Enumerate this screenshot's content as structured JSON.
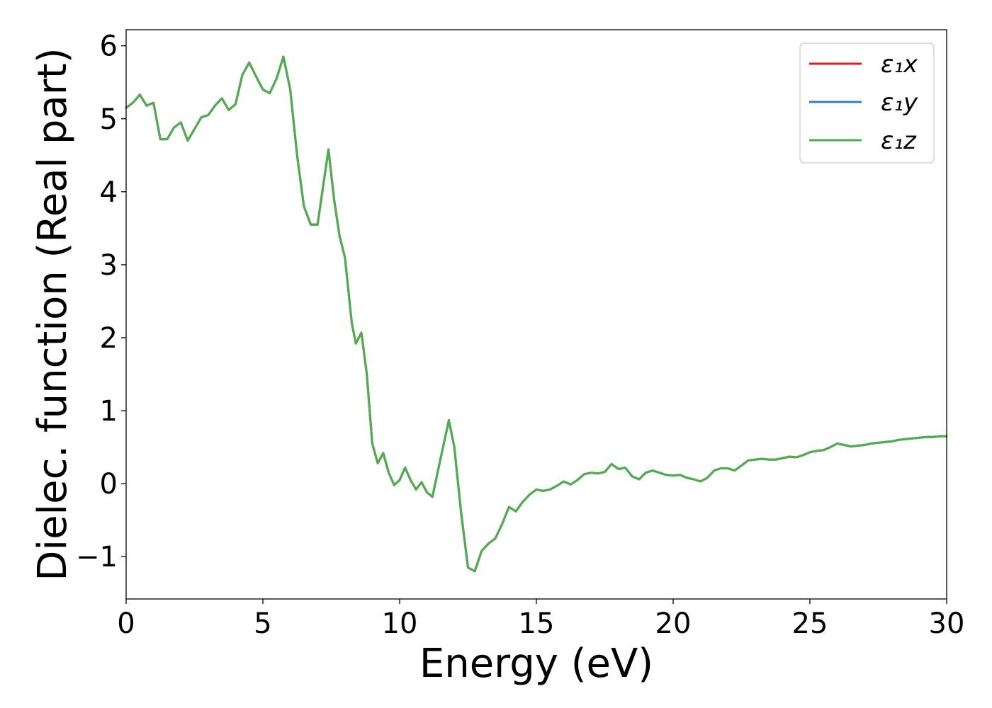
{
  "chart_data": {
    "type": "line",
    "xlabel": "Energy (eV)",
    "ylabel": "Dielec. function (Real part)",
    "xlim": [
      0,
      30
    ],
    "ylim": [
      -1.58,
      6.22
    ],
    "xticks": [
      0,
      5,
      10,
      15,
      20,
      25,
      30
    ],
    "yticks": [
      -1,
      0,
      1,
      2,
      3,
      4,
      5,
      6
    ],
    "xtick_labels": [
      "0",
      "5",
      "10",
      "15",
      "20",
      "25",
      "30"
    ],
    "ytick_labels": [
      "−1",
      "0",
      "1",
      "2",
      "3",
      "4",
      "5",
      "6"
    ],
    "grid": false,
    "legend_position": "top-right",
    "x": [
      0,
      0.25,
      0.5,
      0.75,
      1.0,
      1.25,
      1.5,
      1.75,
      2.0,
      2.25,
      2.5,
      2.75,
      3.0,
      3.25,
      3.5,
      3.75,
      4.0,
      4.25,
      4.5,
      4.75,
      5.0,
      5.25,
      5.5,
      5.75,
      6.0,
      6.25,
      6.5,
      6.75,
      7.0,
      7.25,
      7.4,
      7.6,
      7.8,
      8.0,
      8.25,
      8.4,
      8.6,
      8.8,
      9.0,
      9.2,
      9.4,
      9.6,
      9.8,
      10.0,
      10.2,
      10.4,
      10.6,
      10.8,
      11.0,
      11.2,
      11.5,
      11.8,
      12.0,
      12.25,
      12.5,
      12.75,
      13.0,
      13.25,
      13.5,
      13.75,
      14.0,
      14.25,
      14.5,
      14.75,
      15.0,
      15.25,
      15.5,
      15.75,
      16.0,
      16.25,
      16.5,
      16.75,
      17.0,
      17.25,
      17.5,
      17.75,
      18.0,
      18.25,
      18.5,
      18.75,
      19.0,
      19.25,
      19.5,
      19.75,
      20.0,
      20.25,
      20.5,
      20.75,
      21.0,
      21.25,
      21.5,
      21.75,
      22.0,
      22.25,
      22.5,
      22.75,
      23.0,
      23.25,
      23.5,
      23.75,
      24.0,
      24.25,
      24.5,
      24.75,
      25.0,
      25.25,
      25.5,
      25.75,
      26.0,
      26.25,
      26.5,
      26.75,
      27.0,
      27.25,
      27.5,
      27.75,
      28.0,
      28.25,
      28.5,
      28.75,
      29.0,
      29.25,
      29.5,
      29.75,
      30.0
    ],
    "series": [
      {
        "name": "ε₁x",
        "color": "#e41a1c",
        "values": [
          5.15,
          5.22,
          5.33,
          5.18,
          5.22,
          4.72,
          4.72,
          4.88,
          4.95,
          4.7,
          4.86,
          5.02,
          5.05,
          5.18,
          5.28,
          5.12,
          5.2,
          5.6,
          5.77,
          5.58,
          5.4,
          5.35,
          5.55,
          5.85,
          5.4,
          4.5,
          3.8,
          3.55,
          3.55,
          4.2,
          4.58,
          3.9,
          3.4,
          3.1,
          2.2,
          1.92,
          2.07,
          1.5,
          0.55,
          0.28,
          0.42,
          0.15,
          -0.02,
          0.05,
          0.22,
          0.05,
          -0.08,
          0.02,
          -0.12,
          -0.18,
          0.35,
          0.87,
          0.5,
          -0.4,
          -1.15,
          -1.2,
          -0.92,
          -0.82,
          -0.75,
          -0.55,
          -0.32,
          -0.38,
          -0.25,
          -0.15,
          -0.08,
          -0.1,
          -0.08,
          -0.03,
          0.03,
          -0.01,
          0.05,
          0.13,
          0.15,
          0.14,
          0.16,
          0.27,
          0.2,
          0.22,
          0.1,
          0.06,
          0.15,
          0.18,
          0.15,
          0.12,
          0.11,
          0.12,
          0.08,
          0.06,
          0.03,
          0.08,
          0.18,
          0.21,
          0.21,
          0.18,
          0.25,
          0.32,
          0.33,
          0.34,
          0.33,
          0.33,
          0.35,
          0.37,
          0.36,
          0.39,
          0.43,
          0.45,
          0.46,
          0.5,
          0.55,
          0.53,
          0.51,
          0.52,
          0.53,
          0.55,
          0.56,
          0.57,
          0.58,
          0.6,
          0.61,
          0.62,
          0.63,
          0.64,
          0.64,
          0.65,
          0.65
        ]
      },
      {
        "name": "ε₁y",
        "color": "#377eb8",
        "values": [
          5.15,
          5.22,
          5.33,
          5.18,
          5.22,
          4.72,
          4.72,
          4.88,
          4.95,
          4.7,
          4.86,
          5.02,
          5.05,
          5.18,
          5.28,
          5.12,
          5.2,
          5.6,
          5.77,
          5.58,
          5.4,
          5.35,
          5.55,
          5.85,
          5.4,
          4.5,
          3.8,
          3.55,
          3.55,
          4.2,
          4.58,
          3.9,
          3.4,
          3.1,
          2.2,
          1.92,
          2.07,
          1.5,
          0.55,
          0.28,
          0.42,
          0.15,
          -0.02,
          0.05,
          0.22,
          0.05,
          -0.08,
          0.02,
          -0.12,
          -0.18,
          0.35,
          0.87,
          0.5,
          -0.4,
          -1.15,
          -1.2,
          -0.92,
          -0.82,
          -0.75,
          -0.55,
          -0.32,
          -0.38,
          -0.25,
          -0.15,
          -0.08,
          -0.1,
          -0.08,
          -0.03,
          0.03,
          -0.01,
          0.05,
          0.13,
          0.15,
          0.14,
          0.16,
          0.27,
          0.2,
          0.22,
          0.1,
          0.06,
          0.15,
          0.18,
          0.15,
          0.12,
          0.11,
          0.12,
          0.08,
          0.06,
          0.03,
          0.08,
          0.18,
          0.21,
          0.21,
          0.18,
          0.25,
          0.32,
          0.33,
          0.34,
          0.33,
          0.33,
          0.35,
          0.37,
          0.36,
          0.39,
          0.43,
          0.45,
          0.46,
          0.5,
          0.55,
          0.53,
          0.51,
          0.52,
          0.53,
          0.55,
          0.56,
          0.57,
          0.58,
          0.6,
          0.61,
          0.62,
          0.63,
          0.64,
          0.64,
          0.65,
          0.65
        ]
      },
      {
        "name": "ε₁z",
        "color": "#4daf4a",
        "values": [
          5.15,
          5.22,
          5.33,
          5.18,
          5.22,
          4.72,
          4.72,
          4.88,
          4.95,
          4.7,
          4.86,
          5.02,
          5.05,
          5.18,
          5.28,
          5.12,
          5.2,
          5.6,
          5.77,
          5.58,
          5.4,
          5.35,
          5.55,
          5.85,
          5.4,
          4.5,
          3.8,
          3.55,
          3.55,
          4.2,
          4.58,
          3.9,
          3.4,
          3.1,
          2.2,
          1.92,
          2.07,
          1.5,
          0.55,
          0.28,
          0.42,
          0.15,
          -0.02,
          0.05,
          0.22,
          0.05,
          -0.08,
          0.02,
          -0.12,
          -0.18,
          0.35,
          0.87,
          0.5,
          -0.4,
          -1.15,
          -1.2,
          -0.92,
          -0.82,
          -0.75,
          -0.55,
          -0.32,
          -0.38,
          -0.25,
          -0.15,
          -0.08,
          -0.1,
          -0.08,
          -0.03,
          0.03,
          -0.01,
          0.05,
          0.13,
          0.15,
          0.14,
          0.16,
          0.27,
          0.2,
          0.22,
          0.1,
          0.06,
          0.15,
          0.18,
          0.15,
          0.12,
          0.11,
          0.12,
          0.08,
          0.06,
          0.03,
          0.08,
          0.18,
          0.21,
          0.21,
          0.18,
          0.25,
          0.32,
          0.33,
          0.34,
          0.33,
          0.33,
          0.35,
          0.37,
          0.36,
          0.39,
          0.43,
          0.45,
          0.46,
          0.5,
          0.55,
          0.53,
          0.51,
          0.52,
          0.53,
          0.55,
          0.56,
          0.57,
          0.58,
          0.6,
          0.61,
          0.62,
          0.63,
          0.64,
          0.64,
          0.65,
          0.65
        ]
      }
    ]
  }
}
